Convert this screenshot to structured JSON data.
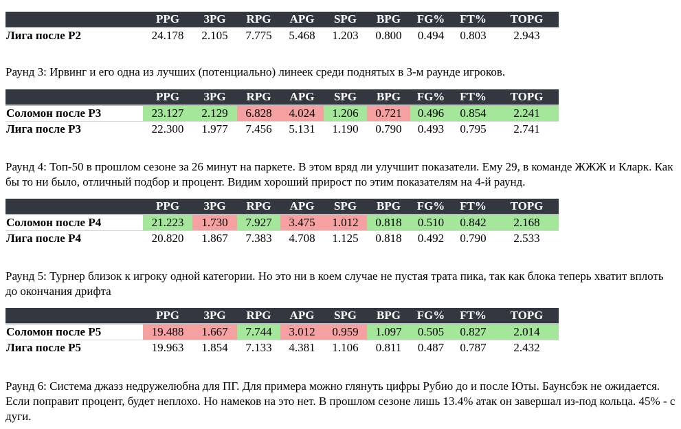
{
  "headers": [
    "PPG",
    "3PG",
    "RPG",
    "APG",
    "SPG",
    "BPG",
    "FG%",
    "FT%",
    "TOPG"
  ],
  "colors": {
    "header_bg": "#333840",
    "good": "#a4e79b",
    "bad": "#f5a1a1"
  },
  "sections": [
    {
      "text": "",
      "solomon": null,
      "league": {
        "label": "Лига после Р2",
        "values": [
          "24.178",
          "2.105",
          "7.775",
          "5.468",
          "1.203",
          "0.800",
          "0.494",
          "0.803",
          "2.943"
        ]
      }
    },
    {
      "text": "Раунд 3: Ирвинг и его одна из лучших (потенциально) линеек среди поднятых в 3-м раунде игроков.",
      "solomon": {
        "label": "Соломон после Р3",
        "values": [
          "23.127",
          "2.129",
          "6.828",
          "4.024",
          "1.206",
          "0.721",
          "0.496",
          "0.854",
          "2.241"
        ],
        "status": [
          "good",
          "good",
          "bad",
          "bad",
          "good",
          "bad",
          "good",
          "good",
          "good"
        ]
      },
      "league": {
        "label": "Лига после Р3",
        "values": [
          "22.300",
          "1.977",
          "7.456",
          "5.131",
          "1.190",
          "0.790",
          "0.493",
          "0.795",
          "2.741"
        ]
      }
    },
    {
      "text": "Раунд 4: Топ-50 в прошлом сезоне за 26 минут на паркете. В этом вряд ли улучшит показатели. Ему 29, в команде ЖЖЖ и Кларк. Как бы то ни было, отличный подбор и процент. Видим хороший прирост по этим показателям на 4-й раунд.",
      "solomon": {
        "label": "Соломон после Р4",
        "values": [
          "21.223",
          "1.730",
          "7.927",
          "3.475",
          "1.012",
          "0.818",
          "0.510",
          "0.842",
          "2.168"
        ],
        "status": [
          "good",
          "bad",
          "good",
          "bad",
          "bad",
          "good",
          "good",
          "good",
          "good"
        ]
      },
      "league": {
        "label": "Лига после Р4",
        "values": [
          "20.820",
          "1.867",
          "7.383",
          "4.708",
          "1.125",
          "0.818",
          "0.492",
          "0.790",
          "2.533"
        ]
      }
    },
    {
      "text": "Раунд 5: Турнер близок к игроку одной категории. Но это ни в коем случае не пустая трата пика, так как блока теперь хватит вплоть до окончания дрифта",
      "solomon": {
        "label": "Соломон после Р5",
        "values": [
          "19.488",
          "1.667",
          "7.744",
          "3.012",
          "0.959",
          "1.097",
          "0.505",
          "0.827",
          "2.014"
        ],
        "status": [
          "bad",
          "bad",
          "good",
          "bad",
          "bad",
          "good",
          "good",
          "good",
          "good"
        ]
      },
      "league": {
        "label": "Лига после Р5",
        "values": [
          "19.963",
          "1.854",
          "7.133",
          "4.381",
          "1.106",
          "0.811",
          "0.487",
          "0.787",
          "2.432"
        ]
      }
    },
    {
      "text": "Раунд 6: Система джазз недружелюбна для ПГ. Для примера можно глянуть цифры Рубио до и после Юты. Баунсбэк не ожидается. Если поправит процент, будет неплохо. Но намеков на это нет. В прошлом сезоне лишь 13.4% атак он завершал из-под кольца. 45% - с дуги.",
      "solomon": null,
      "league": null
    }
  ]
}
